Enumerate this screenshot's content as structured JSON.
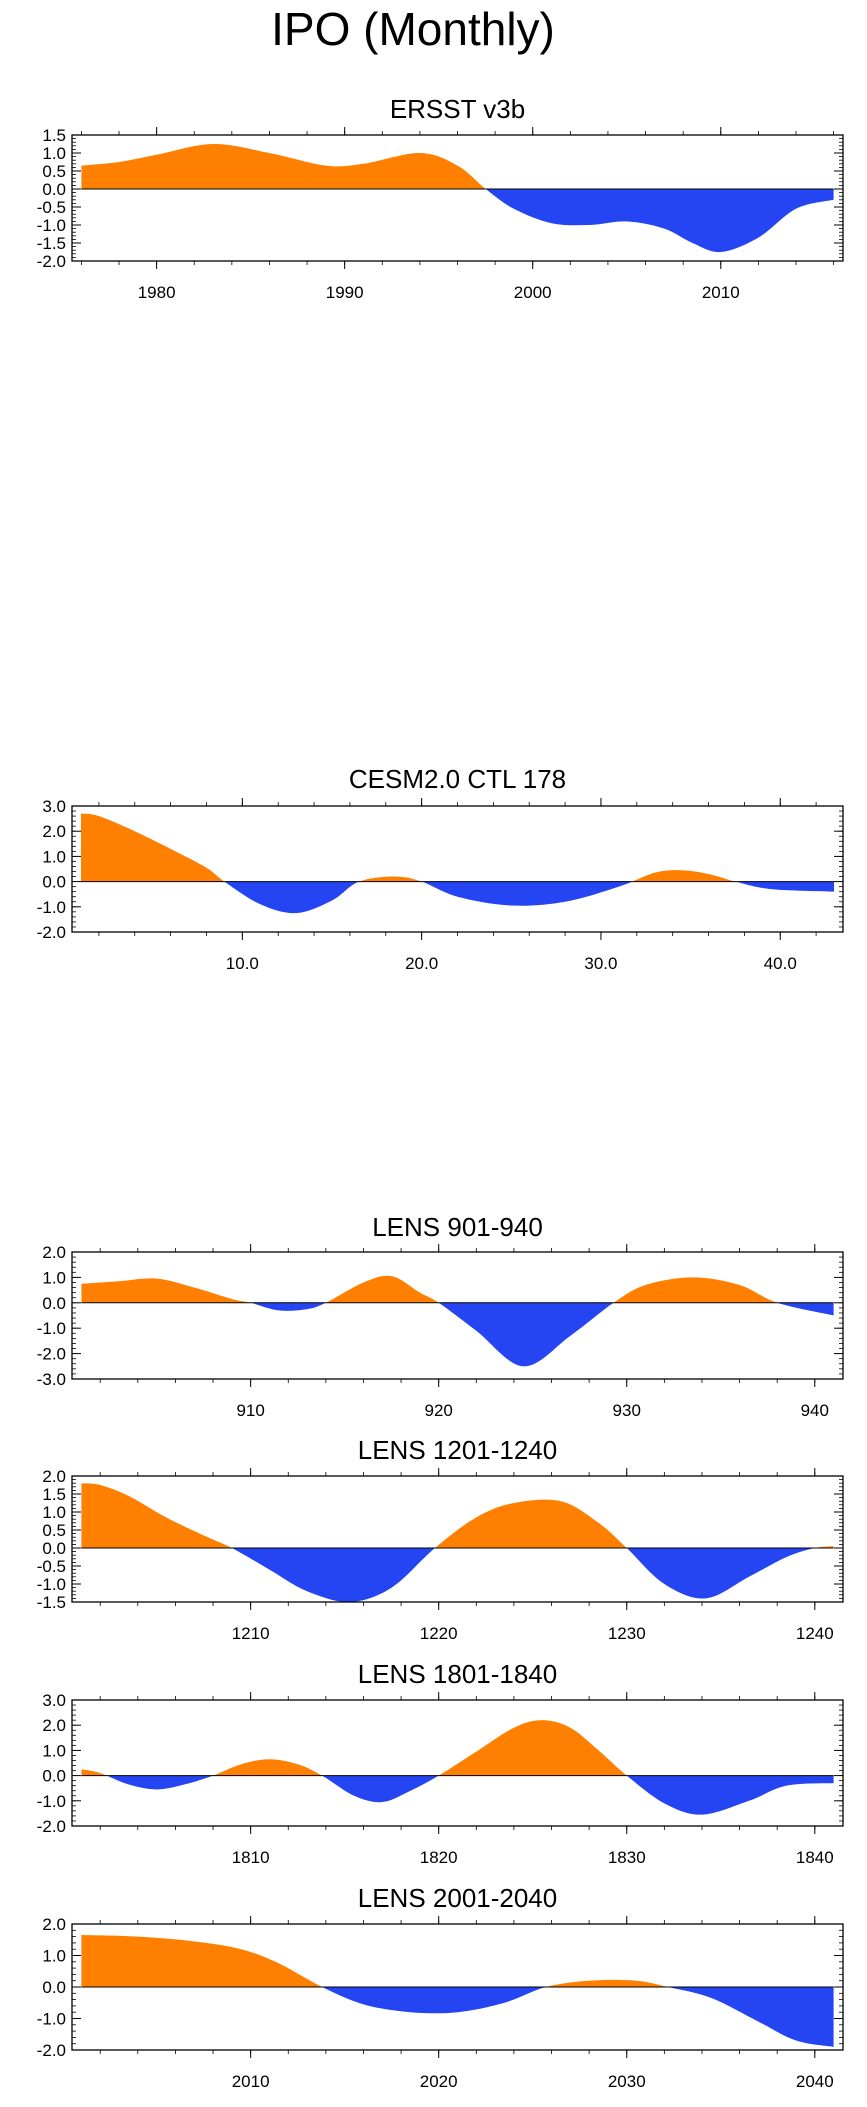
{
  "title": "IPO (Monthly)",
  "colors": {
    "positive": "#ff8000",
    "negative": "#2545f2",
    "axis": "#000000"
  },
  "chart_data": [
    {
      "type": "area",
      "title": "ERSST v3b",
      "xlim": [
        1975.5,
        2016.5
      ],
      "ylim": [
        -2.0,
        1.5
      ],
      "xticks": [
        1980,
        1990,
        2000,
        2010
      ],
      "xtick_labels": [
        "1980",
        "1990",
        "2000",
        "2010"
      ],
      "yticks": [
        1.5,
        1.0,
        0.5,
        0.0,
        -0.5,
        -1.0,
        -1.5,
        -2.0
      ],
      "ytick_labels": [
        "1.5",
        "1.0",
        "0.5",
        "0.0",
        "-0.5",
        "-1.0",
        "-1.5",
        "-2.0"
      ],
      "x": [
        1976,
        1978,
        1980,
        1983,
        1986,
        1989,
        1991,
        1994,
        1996,
        1997.5,
        1999,
        2001,
        2003,
        2005,
        2007,
        2008.5,
        2010,
        2012,
        2014,
        2016
      ],
      "values": [
        0.65,
        0.75,
        0.95,
        1.25,
        1.0,
        0.65,
        0.7,
        1.0,
        0.65,
        0.0,
        -0.55,
        -0.95,
        -1.0,
        -0.9,
        -1.1,
        -1.5,
        -1.75,
        -1.35,
        -0.55,
        -0.3
      ]
    },
    {
      "type": "area",
      "title": "CESM2.0 CTL 178",
      "xlim": [
        0.5,
        43.5
      ],
      "ylim": [
        -2.0,
        3.0
      ],
      "xticks": [
        10,
        20,
        30,
        40
      ],
      "xtick_labels": [
        "10.0",
        "20.0",
        "30.0",
        "40.0"
      ],
      "yticks": [
        3.0,
        2.0,
        1.0,
        0.0,
        -1.0,
        -2.0
      ],
      "ytick_labels": [
        "3.0",
        "2.0",
        "1.0",
        "0.0",
        "-1.0",
        "-2.0"
      ],
      "x": [
        1,
        2,
        4,
        6,
        8,
        9,
        11,
        13,
        15,
        16.5,
        18.5,
        20,
        22,
        25,
        28,
        31,
        33,
        34.5,
        36,
        37.5,
        39.5,
        43
      ],
      "values": [
        2.7,
        2.6,
        2.0,
        1.3,
        0.55,
        0.0,
        -0.9,
        -1.25,
        -0.75,
        0.0,
        0.2,
        0.0,
        -0.6,
        -0.95,
        -0.8,
        -0.2,
        0.35,
        0.45,
        0.3,
        0.0,
        -0.3,
        -0.4
      ]
    },
    {
      "type": "area",
      "title": "LENS 901-940",
      "xlim": [
        900.5,
        941.5
      ],
      "ylim": [
        -3.0,
        2.0
      ],
      "xticks": [
        910,
        920,
        930,
        940
      ],
      "xtick_labels": [
        "910",
        "920",
        "930",
        "940"
      ],
      "yticks": [
        2.0,
        1.0,
        0.0,
        -1.0,
        -2.0,
        -3.0
      ],
      "ytick_labels": [
        "2.0",
        "1.0",
        "0.0",
        "-1.0",
        "-2.0",
        "-3.0"
      ],
      "x": [
        901,
        903,
        905,
        907,
        909,
        910,
        911.5,
        913,
        914,
        916,
        917.5,
        919,
        920,
        922,
        924.5,
        927,
        929.3,
        931,
        933.5,
        936,
        938,
        941
      ],
      "values": [
        0.75,
        0.85,
        0.95,
        0.6,
        0.15,
        0.0,
        -0.3,
        -0.25,
        0.0,
        0.8,
        1.05,
        0.4,
        0.0,
        -1.1,
        -2.5,
        -1.3,
        0.0,
        0.7,
        1.0,
        0.7,
        0.0,
        -0.5
      ]
    },
    {
      "type": "area",
      "title": "LENS 1201-1240",
      "xlim": [
        1200.5,
        1241.5
      ],
      "ylim": [
        -1.5,
        2.0
      ],
      "xticks": [
        1210,
        1220,
        1230,
        1240
      ],
      "xtick_labels": [
        "1210",
        "1220",
        "1230",
        "1240"
      ],
      "yticks": [
        2.0,
        1.5,
        1.0,
        0.5,
        0.0,
        -0.5,
        -1.0,
        -1.5
      ],
      "ytick_labels": [
        "2.0",
        "1.5",
        "1.0",
        "0.5",
        "0.0",
        "-0.5",
        "-1.0",
        "-1.5"
      ],
      "x": [
        1201,
        1202,
        1203.5,
        1205.5,
        1207.5,
        1209,
        1211,
        1213,
        1215.3,
        1217.5,
        1219.8,
        1222,
        1224,
        1226.5,
        1228.5,
        1230,
        1232,
        1234.2,
        1236.5,
        1238.5,
        1240,
        1241
      ],
      "values": [
        1.8,
        1.75,
        1.45,
        0.85,
        0.35,
        0.0,
        -0.6,
        -1.2,
        -1.5,
        -1.1,
        0.0,
        0.85,
        1.25,
        1.3,
        0.7,
        0.0,
        -1.0,
        -1.4,
        -0.8,
        -0.25,
        0.0,
        0.05
      ]
    },
    {
      "type": "area",
      "title": "LENS 1801-1840",
      "xlim": [
        1800.5,
        1841.5
      ],
      "ylim": [
        -2.0,
        3.0
      ],
      "xticks": [
        1810,
        1820,
        1830,
        1840
      ],
      "xtick_labels": [
        "1810",
        "1820",
        "1830",
        "1840"
      ],
      "yticks": [
        3.0,
        2.0,
        1.0,
        0.0,
        -1.0,
        -2.0
      ],
      "ytick_labels": [
        "3.0",
        "2.0",
        "1.0",
        "0.0",
        "-1.0",
        "-2.0"
      ],
      "x": [
        1801,
        1802,
        1803.5,
        1805,
        1806.5,
        1808,
        1809.5,
        1811,
        1812.5,
        1813.8,
        1815.5,
        1817,
        1818.5,
        1820,
        1822,
        1824,
        1825.5,
        1827,
        1828.5,
        1830,
        1832,
        1834,
        1836.5,
        1838.5,
        1841
      ],
      "values": [
        0.25,
        0.1,
        -0.35,
        -0.55,
        -0.35,
        0.0,
        0.45,
        0.65,
        0.45,
        0.0,
        -0.8,
        -1.05,
        -0.6,
        0.0,
        0.95,
        1.9,
        2.2,
        1.9,
        1.0,
        0.0,
        -1.1,
        -1.55,
        -1.0,
        -0.4,
        -0.3
      ]
    },
    {
      "type": "area",
      "title": "LENS 2001-2040",
      "xlim": [
        2000.5,
        2041.5
      ],
      "ylim": [
        -2.0,
        2.0
      ],
      "xticks": [
        2010,
        2020,
        2030,
        2040
      ],
      "xtick_labels": [
        "2010",
        "2020",
        "2030",
        "2040"
      ],
      "yticks": [
        2.0,
        1.0,
        0.0,
        -1.0,
        -2.0
      ],
      "ytick_labels": [
        "2.0",
        "1.0",
        "0.0",
        "-1.0",
        "-2.0"
      ],
      "x": [
        2001,
        2004,
        2007,
        2009.5,
        2011.5,
        2013.8,
        2016,
        2018.5,
        2021,
        2023.5,
        2025.7,
        2028,
        2030.5,
        2032.2,
        2034.5,
        2037,
        2039,
        2041
      ],
      "values": [
        1.65,
        1.6,
        1.45,
        1.2,
        0.75,
        0.0,
        -0.55,
        -0.8,
        -0.8,
        -0.5,
        0.0,
        0.2,
        0.2,
        0.0,
        -0.35,
        -1.1,
        -1.7,
        -1.9
      ]
    }
  ]
}
